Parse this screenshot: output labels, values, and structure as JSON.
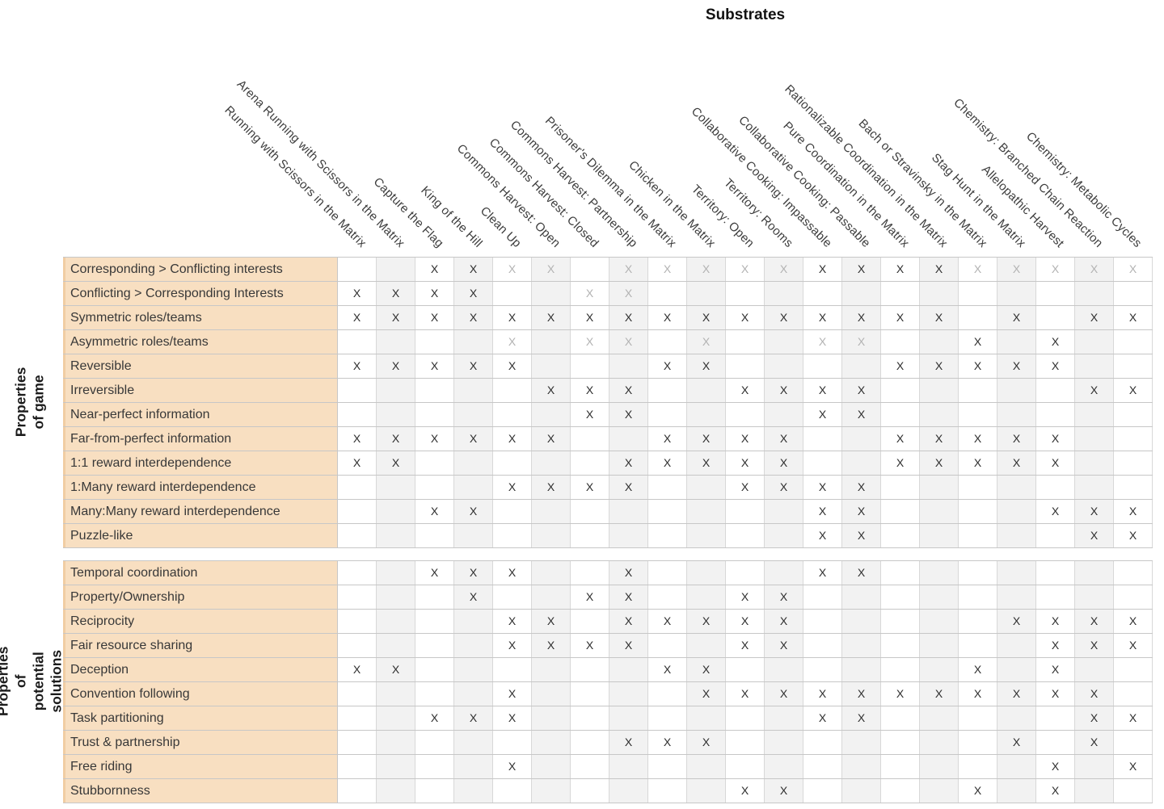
{
  "chart_data": {
    "type": "heatmap",
    "title": "Substrates",
    "mark": "x",
    "y_axis_group_labels": {
      "game": "Properties of game",
      "solutions": "Properties of potential\nsolutions"
    },
    "columns": [
      "Running with Scissors in the Matrix",
      "Arena Running with Scissors in the Matrix",
      "Capture the Flag",
      "King of the Hill",
      "Clean Up",
      "Commons Harvest: Open",
      "Commons Harvest: Closed",
      "Commons Harvest: Partnership",
      "Prisoner's Dilemma in the Matrix",
      "Chicken in the Matrix",
      "Territory: Open",
      "Territory: Rooms",
      "Collaborative Cooking: Impassable",
      "Collaborative Cooking: Passable",
      "Pure Coordination in the Matrix",
      "Rationalizable Coordination in the Matrix",
      "Bach or Stravinsky in the Matrix",
      "Stag Hunt in the Matrix",
      "Allelopathic Harvest",
      "Chemistry: Branched Chain Reaction",
      "Chemistry: Metabolic Cycles"
    ],
    "sections": [
      {
        "id": "game",
        "rows": [
          {
            "label": "Corresponding > Conflicting interests",
            "black": [
              3,
              4,
              13,
              14,
              15,
              16
            ],
            "gray": [
              5,
              6,
              8,
              9,
              10,
              11,
              12,
              17,
              18,
              19,
              20,
              21
            ]
          },
          {
            "label": "Conflicting > Corresponding Interests",
            "black": [
              1,
              2,
              3,
              4
            ],
            "gray": [
              7,
              8
            ]
          },
          {
            "label": "Symmetric roles/teams",
            "black": [
              1,
              2,
              3,
              4,
              5,
              6,
              7,
              8,
              9,
              10,
              11,
              12,
              13,
              14,
              15,
              16,
              18,
              20,
              21
            ],
            "gray": []
          },
          {
            "label": "Asymmetric roles/teams",
            "black": [
              17,
              19
            ],
            "gray": [
              5,
              7,
              8,
              10,
              13,
              14
            ]
          },
          {
            "label": "Reversible",
            "black": [
              1,
              2,
              3,
              4,
              5,
              9,
              10,
              15,
              16,
              17,
              18,
              19
            ],
            "gray": []
          },
          {
            "label": "Irreversible",
            "black": [
              6,
              7,
              8,
              11,
              12,
              13,
              14,
              20,
              21
            ],
            "gray": []
          },
          {
            "label": "Near-perfect information",
            "black": [
              7,
              8,
              13,
              14
            ],
            "gray": []
          },
          {
            "label": "Far-from-perfect information",
            "black": [
              1,
              2,
              3,
              4,
              5,
              6,
              9,
              10,
              11,
              12,
              15,
              16,
              17,
              18,
              19
            ],
            "gray": []
          },
          {
            "label": "1:1 reward interdependence",
            "black": [
              1,
              2,
              8,
              9,
              10,
              11,
              12,
              15,
              16,
              17,
              18,
              19
            ],
            "gray": []
          },
          {
            "label": "1:Many reward interdependence",
            "black": [
              5,
              6,
              7,
              8,
              11,
              12,
              13,
              14
            ],
            "gray": []
          },
          {
            "label": "Many:Many reward interdependence",
            "black": [
              3,
              4,
              13,
              14,
              19,
              20,
              21
            ],
            "gray": []
          },
          {
            "label": "Puzzle-like",
            "black": [
              13,
              14,
              20,
              21
            ],
            "gray": []
          }
        ]
      },
      {
        "id": "solutions",
        "rows": [
          {
            "label": "Temporal coordination",
            "black": [
              3,
              4,
              5,
              8,
              13,
              14
            ],
            "gray": []
          },
          {
            "label": "Property/Ownership",
            "black": [
              4,
              7,
              8,
              11,
              12
            ],
            "gray": []
          },
          {
            "label": "Reciprocity",
            "black": [
              5,
              6,
              8,
              9,
              10,
              11,
              12,
              18,
              19,
              20,
              21
            ],
            "gray": []
          },
          {
            "label": "Fair resource sharing",
            "black": [
              5,
              6,
              7,
              8,
              11,
              12,
              19,
              20,
              21
            ],
            "gray": []
          },
          {
            "label": "Deception",
            "black": [
              1,
              2,
              9,
              10,
              17,
              19
            ],
            "gray": []
          },
          {
            "label": "Convention following",
            "black": [
              5,
              10,
              11,
              12,
              13,
              14,
              15,
              16,
              17,
              18,
              19,
              20
            ],
            "gray": []
          },
          {
            "label": "Task partitioning",
            "black": [
              3,
              4,
              5,
              13,
              14,
              20,
              21
            ],
            "gray": []
          },
          {
            "label": "Trust & partnership",
            "black": [
              8,
              9,
              10,
              18,
              20
            ],
            "gray": []
          },
          {
            "label": "Free riding",
            "black": [
              5,
              19,
              21
            ],
            "gray": []
          },
          {
            "label": "Stubbornness",
            "black": [
              11,
              12,
              17,
              19
            ],
            "gray": []
          }
        ]
      }
    ],
    "layout": {
      "columns_shaded": "even",
      "grid": true,
      "header_rotation_deg": 45
    }
  },
  "colors": {
    "row_label_bg": "#f8dfc1",
    "row_label_edge": "#f1cda3",
    "shaded_column": "#f2f2f2",
    "gridline": "#c7c7c7",
    "mark_black": "#2d2d2d",
    "mark_gray": "#b2b2b2"
  }
}
